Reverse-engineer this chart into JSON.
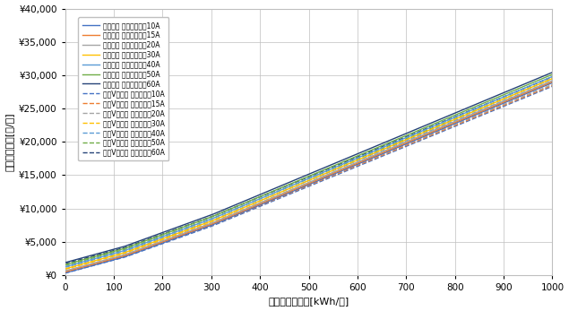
{
  "xlabel": "月間電力使用量[kWh/月]",
  "ylabel": "準定電気料金[円/月]",
  "xlim": [
    0,
    1000
  ],
  "ylim": [
    0,
    40000
  ],
  "xticks": [
    0,
    100,
    200,
    300,
    400,
    500,
    600,
    700,
    800,
    900,
    1000
  ],
  "yticks": [
    0,
    5000,
    10000,
    15000,
    20000,
    25000,
    30000,
    35000,
    40000
  ],
  "amperes": [
    10,
    15,
    20,
    30,
    40,
    50,
    60
  ],
  "tokyo_gas_basic": {
    "base_charges": [
      311.75,
      467.63,
      623.5,
      935.25,
      1247.0,
      1558.75,
      1870.5
    ],
    "unit_price_1": 19.88,
    "unit_price_2": 26.48,
    "unit_price_3": 30.57,
    "threshold_1": 120,
    "threshold_2": 300
  },
  "eneos_v_plan": {
    "base_charges": [
      286.0,
      429.0,
      572.0,
      858.0,
      1144.0,
      1430.0,
      1716.0
    ],
    "unit_price_1": 19.52,
    "unit_price_2": 26.0,
    "unit_price_3": 30.02,
    "threshold_1": 120,
    "threshold_2": 300
  },
  "solid_colors": [
    "#4472c4",
    "#ed7d31",
    "#a5a5a5",
    "#ffc000",
    "#5b9bd5",
    "#70ad47",
    "#264478"
  ],
  "dashed_colors": [
    "#4472c4",
    "#ed7d31",
    "#a5a5a5",
    "#ffc000",
    "#5b9bd5",
    "#70ad47",
    "#264478"
  ],
  "legend_labels_solid": [
    "東京ガス 基本プラン：10A",
    "東京ガス 基本プラン：15A",
    "東京ガス 基本プラン：20A",
    "東京ガス 基本プラン：30A",
    "東京ガス 基本プラン：40A",
    "東京ガス 基本プラン：50A",
    "東京ガス 基本プラン：60A"
  ],
  "legend_labels_dashed": [
    "東京Vプラン 契約容量：10A",
    "東京Vプラン 契約容量：15A",
    "東京Vプラン 契約容量：20A",
    "東京Vプラン 契約容量：30A",
    "東京Vプラン 契約容量：40A",
    "東京Vプラン 契約容量：50A",
    "東京Vプラン 契約容量：60A"
  ],
  "background_color": "#ffffff",
  "grid_color": "#bfbfbf"
}
